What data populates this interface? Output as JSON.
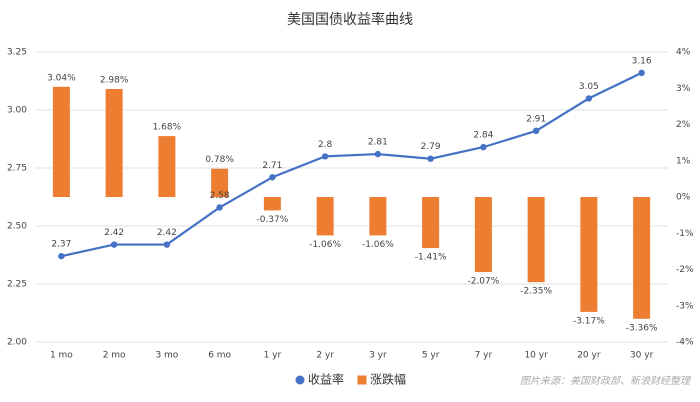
{
  "chart_data": {
    "type": "bar_line",
    "title": "美国国债收益率曲线",
    "categories": [
      "1 mo",
      "2 mo",
      "3 mo",
      "6 mo",
      "1 yr",
      "2 yr",
      "3 yr",
      "5 yr",
      "7 yr",
      "10 yr",
      "20 yr",
      "30 yr"
    ],
    "series": [
      {
        "name": "收益率",
        "type": "line",
        "color": "#4472c4",
        "values": [
          2.37,
          2.42,
          2.42,
          2.58,
          2.71,
          2.8,
          2.81,
          2.79,
          2.84,
          2.91,
          3.05,
          3.16
        ]
      },
      {
        "name": "涨跌幅",
        "type": "bar",
        "axis": "y2",
        "color": "#ed7d31",
        "values": [
          3.04,
          2.98,
          1.68,
          0.78,
          -0.37,
          -1.06,
          -1.06,
          -1.41,
          -2.07,
          -2.35,
          -3.17,
          -3.36
        ],
        "value_labels": [
          "3.04%",
          "2.98%",
          "1.68%",
          "0.78%",
          "-0.37%",
          "-1.06%",
          "-1.06%",
          "-1.41%",
          "-2.07%",
          "-2.35%",
          "-3.17%",
          "-3.36%"
        ]
      }
    ],
    "ylim": [
      2.0,
      3.25
    ],
    "yticks": [
      {
        "value": 2.0,
        "label": "2.00"
      },
      {
        "value": 2.25,
        "label": "2.25"
      },
      {
        "value": 2.5,
        "label": "2.50"
      },
      {
        "value": 2.75,
        "label": "2.75"
      },
      {
        "value": 3.0,
        "label": "3.00"
      },
      {
        "value": 3.25,
        "label": "3.25"
      }
    ],
    "y2lim": [
      -4,
      4
    ],
    "y2ticks": [
      {
        "value": -4,
        "label": "-4%"
      },
      {
        "value": -3,
        "label": "-3%"
      },
      {
        "value": -2,
        "label": "-2%"
      },
      {
        "value": -1,
        "label": "-1%"
      },
      {
        "value": 0,
        "label": "0%"
      },
      {
        "value": 1,
        "label": "1%"
      },
      {
        "value": 2,
        "label": "2%"
      },
      {
        "value": 3,
        "label": "3%"
      },
      {
        "value": 4,
        "label": "4%"
      }
    ],
    "grid": true,
    "legend": "bottom",
    "note": "图片来源：美国财政部、新浪财经整理"
  }
}
